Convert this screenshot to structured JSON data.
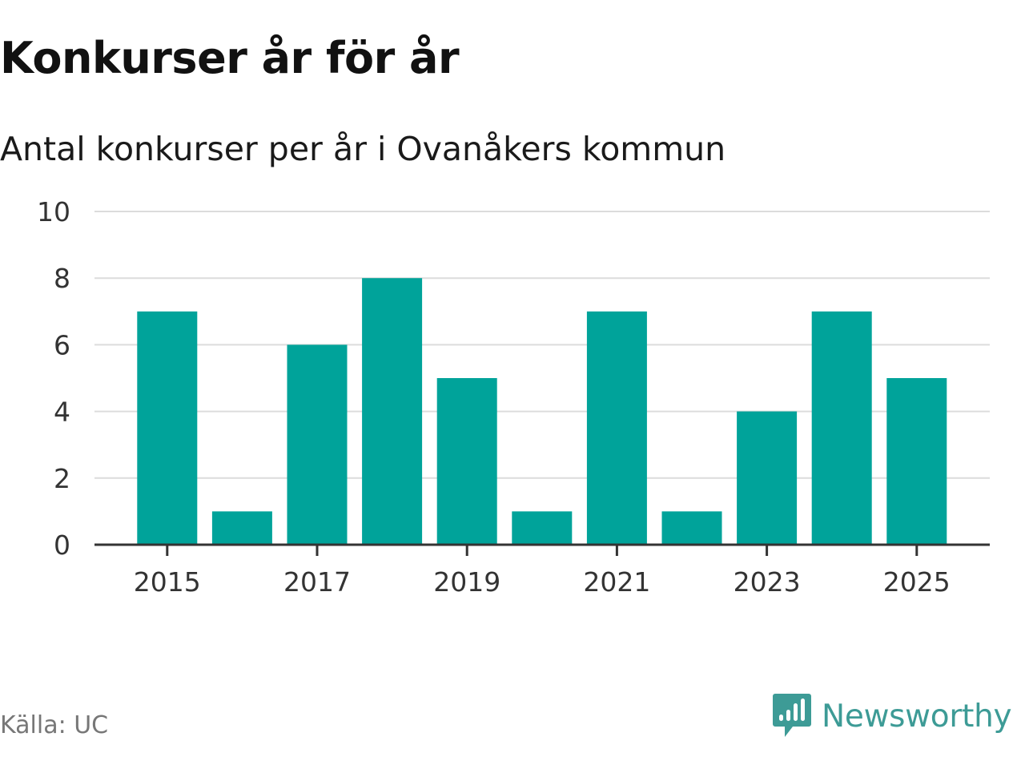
{
  "title": "Konkurser år för år",
  "subtitle": "Antal konkurser per år i Ovanåkers kommun",
  "source": "Källa: UC",
  "brand": {
    "name": "Newsworthy",
    "logo_icon": "bar-chart-speech-bubble-icon",
    "color": "#3d9b96"
  },
  "colors": {
    "bar": "#00a39a",
    "grid": "#dcdcdc",
    "axis": "#333333",
    "tick_text": "#333333"
  },
  "chart_data": {
    "type": "bar",
    "categories": [
      "2015",
      "2016",
      "2017",
      "2018",
      "2019",
      "2020",
      "2021",
      "2022",
      "2023",
      "2024",
      "2025"
    ],
    "values": [
      7,
      1,
      6,
      8,
      5,
      1,
      7,
      1,
      4,
      7,
      5
    ],
    "x_tick_labels": [
      "2015",
      "2017",
      "2019",
      "2021",
      "2023",
      "2025"
    ],
    "y_ticks": [
      0,
      2,
      4,
      6,
      8,
      10
    ],
    "ylim": [
      0,
      10
    ],
    "grid": true,
    "legend": "none"
  }
}
